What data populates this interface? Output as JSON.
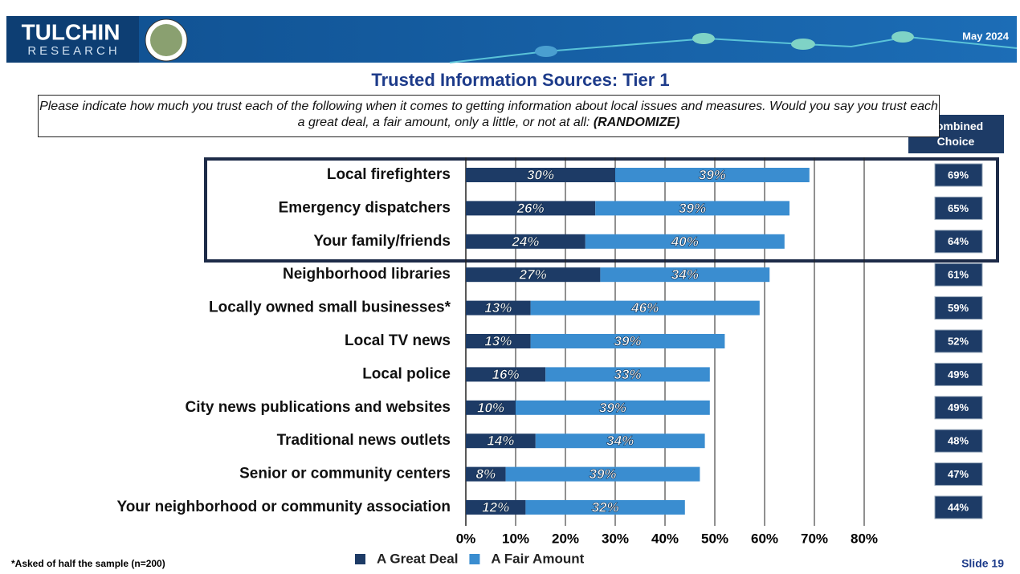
{
  "header": {
    "logo_top": "TULCHIN",
    "logo_bottom": "RESEARCH",
    "date": "May 2024"
  },
  "chart_data": {
    "type": "stacked_barh",
    "title": "Trusted Information Sources: Tier 1",
    "subtitle": "Please indicate how much you trust each of the following when it comes to getting information about local issues and measures. Would you say you trust each a great deal, a fair amount, only a little, or not at all:",
    "subtitle_note": "(RANDOMIZE)",
    "categories": [
      "Local firefighters",
      "Emergency dispatchers",
      "Your family/friends",
      "Neighborhood libraries",
      "Locally owned small businesses*",
      "Local TV news",
      "Local police",
      "City news publications and websites",
      "Traditional news outlets",
      "Senior or community centers",
      "Your neighborhood or community association"
    ],
    "series": [
      {
        "name": "A Great Deal",
        "color": "#1d3b66",
        "values": [
          30,
          26,
          24,
          27,
          13,
          13,
          16,
          10,
          14,
          8,
          12
        ],
        "value_labels": [
          "30%",
          "26%",
          "24%",
          "27%",
          "13%",
          "13%",
          "16%",
          "10%",
          "14%",
          "8%",
          "12%"
        ]
      },
      {
        "name": "A Fair Amount",
        "color": "#3a8dd0",
        "values": [
          39,
          39,
          40,
          34,
          46,
          39,
          33,
          39,
          34,
          39,
          32
        ],
        "value_labels": [
          "39%",
          "39%",
          "40%",
          "34%",
          "46%",
          "39%",
          "33%",
          "39%",
          "34%",
          "39%",
          "32%"
        ]
      }
    ],
    "combined": {
      "label": "Combined Choice",
      "values": [
        69,
        65,
        64,
        61,
        59,
        52,
        49,
        49,
        48,
        47,
        44
      ],
      "value_labels": [
        "69%",
        "65%",
        "64%",
        "61%",
        "59%",
        "52%",
        "49%",
        "49%",
        "48%",
        "47%",
        "44%"
      ]
    },
    "xlim": [
      0,
      80
    ],
    "xticks": [
      {
        "value": 0,
        "label": "0%"
      },
      {
        "value": 10,
        "label": "10%"
      },
      {
        "value": 20,
        "label": "20%"
      },
      {
        "value": 30,
        "label": "30%"
      },
      {
        "value": 40,
        "label": "40%"
      },
      {
        "value": 50,
        "label": "50%"
      },
      {
        "value": 60,
        "label": "60%"
      },
      {
        "value": 70,
        "label": "70%"
      },
      {
        "value": 80,
        "label": "80%"
      }
    ],
    "grid": true
  },
  "footer": {
    "note": "*Asked of half the sample (n=200)",
    "slide": "Slide 19"
  }
}
